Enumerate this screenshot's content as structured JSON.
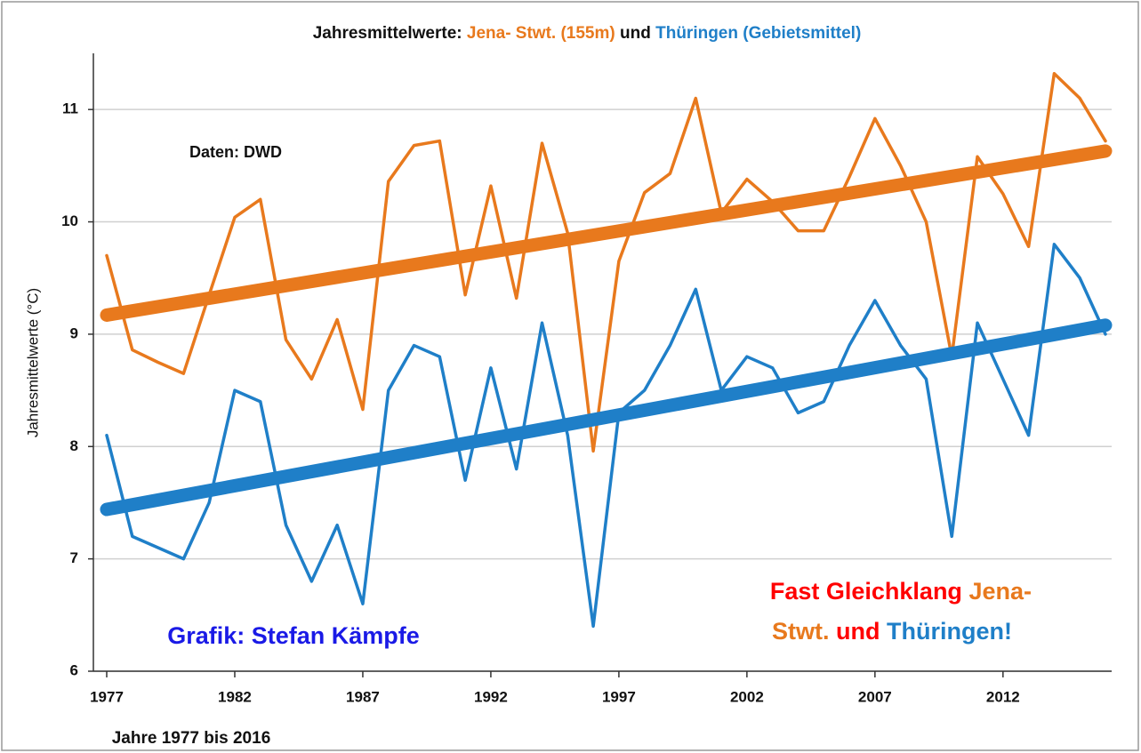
{
  "chart_data": {
    "type": "line",
    "title": {
      "part1": "Jahresmittelwerte:",
      "part2": "Jena- Stwt. (155m)",
      "part3": "und",
      "part4": "Thüringen (Gebietsmittel)"
    },
    "xlabel": "Jahre 1977 bis 2016",
    "ylabel": "Jahresmittelwerte (°C)",
    "annotations": {
      "source": "Daten: DWD",
      "credit": "Grafik: Stefan Kämpfe",
      "note": [
        "Fast Gleichklang",
        "Jena-",
        "Stwt.",
        "und",
        "Thüringen!"
      ]
    },
    "x": [
      1977,
      1978,
      1979,
      1980,
      1981,
      1982,
      1983,
      1984,
      1985,
      1986,
      1987,
      1988,
      1989,
      1990,
      1991,
      1992,
      1993,
      1994,
      1995,
      1996,
      1997,
      1998,
      1999,
      2000,
      2001,
      2002,
      2003,
      2004,
      2005,
      2006,
      2007,
      2008,
      2009,
      2010,
      2011,
      2012,
      2013,
      2014,
      2015,
      2016
    ],
    "series": [
      {
        "color": "#e8791d",
        "values": [
          9.7,
          8.86,
          8.75,
          8.65,
          9.35,
          10.04,
          10.2,
          8.95,
          8.6,
          9.13,
          8.33,
          10.36,
          10.68,
          10.72,
          9.35,
          10.32,
          9.32,
          10.7,
          9.9,
          7.96,
          9.65,
          10.26,
          10.43,
          11.1,
          10.08,
          10.38,
          10.18,
          9.92,
          9.92,
          10.4,
          10.92,
          10.5,
          10.0,
          8.8,
          10.58,
          10.25,
          9.78,
          11.32,
          11.1,
          10.72
        ]
      },
      {
        "color": "#1f7fc8",
        "values": [
          8.1,
          7.2,
          7.1,
          7.0,
          7.5,
          8.5,
          8.4,
          7.3,
          6.8,
          7.3,
          6.6,
          8.5,
          8.9,
          8.8,
          7.7,
          8.7,
          7.8,
          9.1,
          8.1,
          6.4,
          8.3,
          8.5,
          8.9,
          9.4,
          8.5,
          8.8,
          8.7,
          8.3,
          8.4,
          8.9,
          9.3,
          8.9,
          8.6,
          7.2,
          9.1,
          8.6,
          8.1,
          9.8,
          9.5,
          9.0
        ]
      }
    ],
    "trends": [
      {
        "color": "#e8791d",
        "x": [
          1977,
          2016
        ],
        "values": [
          9.17,
          10.63
        ]
      },
      {
        "color": "#1f7fc8",
        "x": [
          1977,
          2016
        ],
        "values": [
          7.44,
          9.08
        ]
      }
    ],
    "xlim": [
      1977,
      2016
    ],
    "xticks": [
      1977,
      1982,
      1987,
      1992,
      1997,
      2002,
      2007,
      2012
    ],
    "ylim": [
      6,
      11.5
    ],
    "yticks": [
      6,
      7,
      8,
      9,
      10,
      11
    ],
    "grid": true
  }
}
